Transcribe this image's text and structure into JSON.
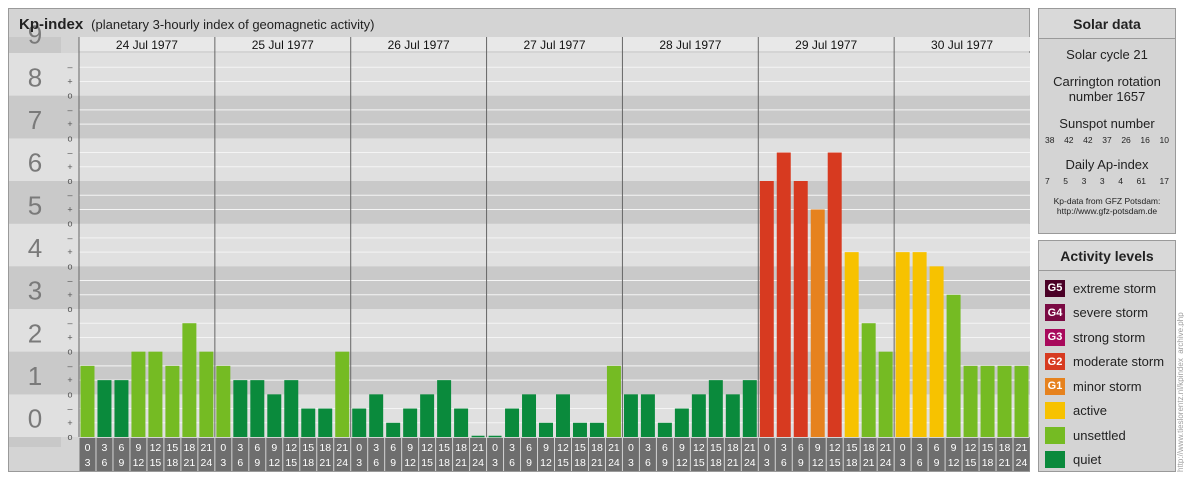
{
  "chart_title": "Kp-index",
  "chart_subtitle": "(planetary 3-hourly index of geomagnetic activity)",
  "chart_data": {
    "type": "bar",
    "title": "Kp-index",
    "subtitle": "(planetary 3-hourly index of geomagnetic activity)",
    "ylim": [
      0,
      9
    ],
    "y_ticks": [
      "0",
      "1",
      "2",
      "3",
      "4",
      "5",
      "6",
      "7",
      "8",
      "9"
    ],
    "y_minor_labels": [
      "+",
      "–",
      "o"
    ],
    "days": [
      "24 Jul 1977",
      "25 Jul 1977",
      "26 Jul 1977",
      "27 Jul 1977",
      "28 Jul 1977",
      "29 Jul 1977",
      "30 Jul 1977"
    ],
    "interval_labels": [
      [
        "0",
        "3"
      ],
      [
        "3",
        "6"
      ],
      [
        "6",
        "9"
      ],
      [
        "9",
        "12"
      ],
      [
        "12",
        "15"
      ],
      [
        "15",
        "18"
      ],
      [
        "18",
        "21"
      ],
      [
        "21",
        "24"
      ]
    ],
    "values": [
      [
        1.667,
        1.333,
        1.333,
        2.0,
        2.0,
        1.667,
        2.667,
        2.0
      ],
      [
        1.667,
        1.333,
        1.333,
        1.0,
        1.333,
        0.667,
        0.667,
        2.0
      ],
      [
        0.667,
        1.0,
        0.333,
        0.667,
        1.0,
        1.333,
        0.667,
        0.0
      ],
      [
        0.0,
        0.667,
        1.0,
        0.333,
        1.0,
        0.333,
        0.333,
        1.667
      ],
      [
        1.0,
        1.0,
        0.333,
        0.667,
        1.0,
        1.333,
        1.0,
        1.333
      ],
      [
        6.0,
        6.667,
        6.0,
        5.333,
        6.667,
        4.333,
        2.667,
        2.0
      ],
      [
        4.333,
        4.333,
        4.0,
        3.333,
        1.667,
        1.667,
        1.667,
        1.667
      ]
    ],
    "colors": {
      "quiet": "#0a8a3c",
      "unsettled": "#75bb23",
      "active": "#f7c200",
      "minor_storm": "#e6821e",
      "moderate_storm": "#d73a20",
      "strong_storm": "#a8095c"
    }
  },
  "solar": {
    "heading": "Solar data",
    "cycle": "Solar cycle 21",
    "carrington_1": "Carrington rotation",
    "carrington_2": "number 1657",
    "sunspot_heading": "Sunspot number",
    "sunspot": [
      "38",
      "42",
      "42",
      "37",
      "26",
      "16",
      "10"
    ],
    "ap_heading": "Daily Ap-index",
    "ap": [
      "7",
      "5",
      "3",
      "3",
      "4",
      "61",
      "17"
    ],
    "credit_1": "Kp-data from GFZ Potsdam:",
    "credit_2": "http://www.gfz-potsdam.de"
  },
  "activity": {
    "heading": "Activity levels",
    "levels": [
      {
        "code": "G5",
        "label": "extreme storm",
        "color": "#4a0026"
      },
      {
        "code": "G4",
        "label": "severe storm",
        "color": "#7a0a43"
      },
      {
        "code": "G3",
        "label": "strong storm",
        "color": "#a8095c"
      },
      {
        "code": "G2",
        "label": "moderate storm",
        "color": "#d73a20"
      },
      {
        "code": "G1",
        "label": "minor storm",
        "color": "#e6821e"
      },
      {
        "code": "",
        "label": "active",
        "color": "#f7c200"
      },
      {
        "code": "",
        "label": "unsettled",
        "color": "#75bb23"
      },
      {
        "code": "",
        "label": "quiet",
        "color": "#0a8a3c"
      }
    ]
  },
  "watermark": "http://www.tieslorentz.nl/kpindex_archive.php"
}
